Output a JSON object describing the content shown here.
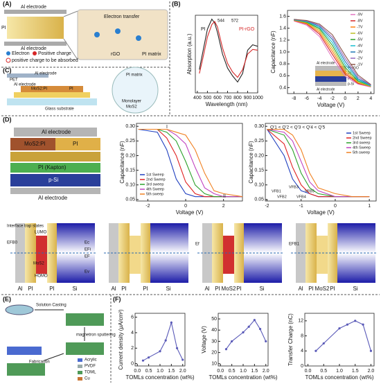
{
  "panels": [
    "(A)",
    "(B)",
    "(C)",
    "(D)",
    "(E)",
    "(F)"
  ],
  "panel_a": {
    "texts": [
      "Al electrode",
      "PI",
      "Al electrode",
      "Electron transfer",
      "rGO",
      "PI matrix",
      "Electron",
      "Positive charge",
      "positive charge to be absorbed"
    ]
  },
  "panel_b_inset": [
    "Al electrode",
    "PI-rGO",
    "PI",
    "PI film",
    "p-Si",
    "Al electrode"
  ],
  "panel_c": [
    "PET",
    "Al electrode",
    "PI",
    "MoS2:PI",
    "Al electrode",
    "Glass substrate",
    "PI matrix",
    "Monolayer",
    "MoS2"
  ],
  "panel_d_stack": [
    "Al electrode",
    "MoS2:PI",
    "PI",
    "PI (Kapton)",
    "p-Si",
    "Al electrode"
  ],
  "band_diagrams": [
    {
      "labels": [
        "Al",
        "PI",
        "PI",
        "Si"
      ],
      "texts": [
        "Interface trap states",
        "EFB0",
        "LUMO",
        "MoS2",
        "HOMO",
        "Ec",
        "EFi",
        "EF",
        "Ev"
      ]
    },
    {
      "labels": [
        "Al",
        "PI",
        "PI",
        "Si"
      ]
    },
    {
      "labels": [
        "Al",
        "PI",
        "MoS2",
        "PI",
        "Si"
      ],
      "texts": [
        "Ef"
      ]
    },
    {
      "labels": [
        "Al",
        "PI",
        "MoS2",
        "PI",
        "Si"
      ],
      "texts": [
        "EFB1"
      ]
    }
  ],
  "panel_e": {
    "steps": [
      "Solution Casting",
      "magnetron sputtering",
      "Fabrication"
    ],
    "legend": [
      "Acrylic",
      "PVDF",
      "TOML",
      "Cu"
    ]
  },
  "chart_data": [
    {
      "type": "line",
      "xlabel": "Wavelength (nm)",
      "ylabel": "Absorption (a.u.)",
      "x": [
        420,
        450,
        500,
        544,
        572,
        600,
        650,
        700,
        750,
        800,
        850,
        900,
        950,
        1000
      ],
      "xlim": [
        380,
        1000
      ],
      "xticks": [
        400,
        500,
        600,
        700,
        800,
        900,
        1000
      ],
      "ylim": [
        0,
        1
      ],
      "annotations": [
        "544",
        "572"
      ],
      "series": [
        {
          "name": "PI",
          "color": "#222222",
          "values": [
            0.3,
            0.5,
            0.82,
            0.95,
            0.9,
            0.78,
            0.5,
            0.32,
            0.22,
            0.14,
            0.25,
            0.55,
            0.62,
            0.6
          ]
        },
        {
          "name": "PI-rGO",
          "color": "#d62728",
          "values": [
            0.25,
            0.42,
            0.72,
            0.88,
            0.92,
            0.85,
            0.58,
            0.38,
            0.27,
            0.2,
            0.3,
            0.5,
            0.56,
            0.55
          ]
        }
      ]
    },
    {
      "type": "line",
      "xlabel": "Voltage (V)",
      "ylabel": "Capacitance (nF)",
      "x": [
        -8,
        -6,
        -4,
        -2,
        0,
        2,
        4
      ],
      "xlim": [
        -9,
        4.5
      ],
      "xticks": [
        -8,
        -6,
        -4,
        -2,
        0,
        2,
        4
      ],
      "ylim": [
        0.3,
        1.7
      ],
      "yticks": [
        0.4,
        0.6,
        0.8,
        {
          "value": 1.0,
          "label": "1.0"
        },
        1.2,
        1.4,
        1.6
      ],
      "legend": "upper right",
      "series": [
        {
          "name": "-9V",
          "color": "#e377c2",
          "values": [
            1.52,
            1.45,
            1.26,
            0.9,
            0.59,
            0.46,
            0.41
          ]
        },
        {
          "name": "-8V",
          "color": "#d62728",
          "values": [
            1.53,
            1.47,
            1.3,
            0.96,
            0.63,
            0.47,
            0.42
          ]
        },
        {
          "name": "-7V",
          "color": "#ff7f0e",
          "values": [
            1.53,
            1.48,
            1.33,
            1.01,
            0.66,
            0.48,
            0.42
          ]
        },
        {
          "name": "-6V",
          "color": "#bcbd22",
          "values": [
            1.54,
            1.49,
            1.36,
            1.06,
            0.7,
            0.49,
            0.42
          ]
        },
        {
          "name": "-5V",
          "color": "#2ca02c",
          "values": [
            1.54,
            1.5,
            1.39,
            1.11,
            0.74,
            0.51,
            0.43
          ]
        },
        {
          "name": "-4V",
          "color": "#17becf",
          "values": [
            1.54,
            1.51,
            1.41,
            1.16,
            0.79,
            0.53,
            0.43
          ]
        },
        {
          "name": "-3V",
          "color": "#1f77b4",
          "values": [
            1.55,
            1.52,
            1.43,
            1.21,
            0.84,
            0.55,
            0.44
          ]
        },
        {
          "name": "-2V",
          "color": "#9467bd",
          "values": [
            1.55,
            1.52,
            1.45,
            1.25,
            0.89,
            0.58,
            0.44
          ]
        },
        {
          "name": "-1V",
          "color": "#8c564b",
          "values": [
            1.55,
            1.53,
            1.47,
            1.29,
            0.94,
            0.61,
            0.45
          ]
        }
      ]
    },
    {
      "type": "line",
      "xlabel": "Voltage (V)",
      "ylabel": "Capacitance (nF)",
      "x": [
        -2.5,
        -1.5,
        -1,
        -0.5,
        0,
        0.5,
        1,
        1.5,
        2,
        3
      ],
      "xlim": [
        -2.6,
        3
      ],
      "xticks": [
        -2,
        0,
        2
      ],
      "ylim": [
        0.045,
        0.31
      ],
      "yticks": [
        0.05,
        {
          "value": 0.1,
          "label": "0.10"
        },
        0.15,
        {
          "value": 0.2,
          "label": "0.20"
        },
        0.25,
        {
          "value": 0.3,
          "label": "0.30"
        }
      ],
      "legend": "lower left",
      "annotations": [
        "I",
        "II"
      ],
      "series": [
        {
          "name": "1st Sweep",
          "color": "#1f3fbf",
          "values": [
            0.29,
            0.28,
            0.22,
            0.12,
            0.07,
            0.06,
            0.06,
            0.06,
            0.06,
            0.06
          ]
        },
        {
          "name": "2nd Sweep",
          "color": "#e02020",
          "values": [
            0.29,
            0.29,
            0.26,
            0.2,
            0.11,
            0.07,
            0.06,
            0.06,
            0.06,
            0.06
          ]
        },
        {
          "name": "3rd sweep",
          "color": "#2aa02a",
          "values": [
            0.29,
            0.29,
            0.28,
            0.25,
            0.18,
            0.1,
            0.07,
            0.06,
            0.06,
            0.06
          ]
        },
        {
          "name": "4th Sweep",
          "color": "#c040c0",
          "values": [
            0.29,
            0.29,
            0.29,
            0.27,
            0.24,
            0.16,
            0.09,
            0.07,
            0.06,
            0.06
          ]
        },
        {
          "name": "5th sweep",
          "color": "#f08020",
          "values": [
            0.29,
            0.29,
            0.29,
            0.28,
            0.27,
            0.22,
            0.14,
            0.08,
            0.07,
            0.06
          ]
        }
      ]
    },
    {
      "type": "line",
      "xlabel": "Voltage (V)",
      "ylabel": "Capacitance (nF)",
      "x": [
        -2,
        -1.5,
        -1.25,
        -1,
        -0.75,
        -0.5,
        0,
        0.5,
        1
      ],
      "xlim": [
        -2.05,
        1.2
      ],
      "xticks": [
        -2,
        -1,
        0,
        1
      ],
      "ylim": [
        0.045,
        0.31
      ],
      "yticks": [
        0.05,
        {
          "value": 0.1,
          "label": "0.10"
        },
        0.15,
        {
          "value": 0.2,
          "label": "0.20"
        },
        0.25,
        {
          "value": 0.3,
          "label": "0.30"
        }
      ],
      "legend": "upper right",
      "annotations": [
        "Q'1 < Q'2 < Q'3 < Q'4 < Q'5",
        "VFB1",
        "VFB2",
        "VFB3",
        "VFB4",
        "VFB5"
      ],
      "series": [
        {
          "name": "1st Sweep",
          "color": "#1f3fbf",
          "values": [
            0.29,
            0.2,
            0.12,
            0.08,
            0.07,
            0.06,
            0.06,
            0.06,
            0.06
          ]
        },
        {
          "name": "2nd Sweep",
          "color": "#e02020",
          "values": [
            0.29,
            0.24,
            0.16,
            0.1,
            0.07,
            0.06,
            0.06,
            0.06,
            0.06
          ]
        },
        {
          "name": "3rd sweep",
          "color": "#2aa02a",
          "values": [
            0.29,
            0.27,
            0.22,
            0.14,
            0.09,
            0.07,
            0.06,
            0.06,
            0.06
          ]
        },
        {
          "name": "4th Sweep",
          "color": "#c040c0",
          "values": [
            0.29,
            0.28,
            0.25,
            0.18,
            0.11,
            0.08,
            0.06,
            0.06,
            0.06
          ]
        },
        {
          "name": "5th sweep",
          "color": "#f08020",
          "values": [
            0.29,
            0.29,
            0.27,
            0.22,
            0.14,
            0.09,
            0.07,
            0.06,
            0.06
          ]
        }
      ]
    },
    {
      "type": "line",
      "markers": true,
      "xlabel": "TOMLs concentration (wt%)",
      "ylabel": "Current density (μA/cm²)",
      "x": [
        0.25,
        0.5,
        1.0,
        1.25,
        1.5,
        1.75,
        2.0
      ],
      "xlim": [
        -0.1,
        2.1
      ],
      "xticks": [
        {
          "value": 0,
          "label": "0.0"
        },
        0.5,
        {
          "value": 1,
          "label": "1.0"
        },
        1.5,
        {
          "value": 2,
          "label": "2.0"
        }
      ],
      "ylim": [
        -0.3,
        6.5
      ],
      "yticks": [
        0,
        2,
        4,
        6
      ],
      "color": "#5a5ab8",
      "values": [
        0.4,
        0.8,
        1.6,
        3.0,
        5.3,
        2.0,
        0.5
      ]
    },
    {
      "type": "line",
      "markers": true,
      "xlabel": "TOMLs concentration (wt%)",
      "ylabel": "Voltage (V)",
      "x": [
        0.25,
        0.5,
        1.0,
        1.25,
        1.5,
        1.75,
        2.0
      ],
      "xlim": [
        -0.1,
        2.1
      ],
      "xticks": [
        {
          "value": 0,
          "label": "0.0"
        },
        0.5,
        {
          "value": 1,
          "label": "1.0"
        },
        1.5,
        {
          "value": 2,
          "label": "2.0"
        }
      ],
      "ylim": [
        8,
        55
      ],
      "yticks": [
        10,
        20,
        30,
        40,
        50
      ],
      "color": "#5a5ab8",
      "values": [
        23,
        30,
        38,
        43,
        49,
        41,
        30
      ]
    },
    {
      "type": "line",
      "markers": true,
      "xlabel": "TOMLs concentration (wt%)",
      "ylabel": "Transfer Charge (nC)",
      "x": [
        0.25,
        0.5,
        1.0,
        1.25,
        1.5,
        1.75,
        2.0
      ],
      "xlim": [
        -0.1,
        2.1
      ],
      "xticks": [
        {
          "value": 0,
          "label": "0.0"
        },
        0.5,
        {
          "value": 1,
          "label": "1.0"
        },
        1.5,
        {
          "value": 2,
          "label": "2.0"
        }
      ],
      "ylim": [
        0,
        14
      ],
      "yticks": [
        0,
        4,
        8,
        12
      ],
      "color": "#5a5ab8",
      "values": [
        4,
        6,
        10,
        11,
        12,
        11,
        4
      ]
    }
  ]
}
